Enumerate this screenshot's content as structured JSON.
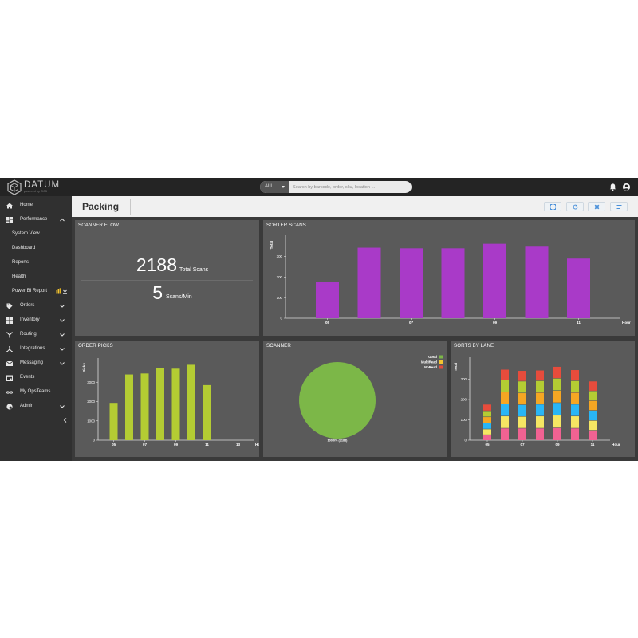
{
  "app": {
    "logo_text": "DATUM",
    "logo_sub": "powered by OC3",
    "search": {
      "scope": "ALL",
      "placeholder": "Search by barcode, order, sku, location ..."
    }
  },
  "sidebar": {
    "items": [
      {
        "label": "Home",
        "icon": "home-icon"
      },
      {
        "label": "Performance",
        "icon": "dashboard-icon",
        "expanded": true
      },
      {
        "label": "System View",
        "sub": true
      },
      {
        "label": "Dashboard",
        "sub": true
      },
      {
        "label": "Reports",
        "sub": true
      },
      {
        "label": "Health",
        "sub": true
      },
      {
        "label": "Power BI Report",
        "sub": true
      },
      {
        "label": "Orders",
        "icon": "tag-icon"
      },
      {
        "label": "Inventory",
        "icon": "grid-icon"
      },
      {
        "label": "Routing",
        "icon": "routing-icon"
      },
      {
        "label": "Integrations",
        "icon": "hub-icon"
      },
      {
        "label": "Messaging",
        "icon": "mail-icon"
      },
      {
        "label": "Events",
        "icon": "calendar-icon"
      },
      {
        "label": "My OpsTeams",
        "icon": "infinity-icon"
      },
      {
        "label": "Admin",
        "icon": "admin-icon"
      }
    ]
  },
  "page": {
    "title": "Packing"
  },
  "panels": {
    "scanner_flow": {
      "title": "SCANNER FLOW",
      "total_value": "2188",
      "total_label": "Total Scans",
      "rate_value": "5",
      "rate_label": "Scans/Min"
    },
    "sorter_scans": {
      "title": "SORTER SCANS"
    },
    "order_picks": {
      "title": "ORDER PICKS"
    },
    "scanner": {
      "title": "SCANNER"
    },
    "sorts_by_lane": {
      "title": "SORTS BY LANE"
    }
  },
  "colors": {
    "sorter_bar": "#a93ac8",
    "picks_bar": "#b4cc33",
    "pie_good": "#7cb748",
    "multiread": "#f4c430",
    "noread": "#e24c3c",
    "lane_colors": [
      "#f06292",
      "#f5e663",
      "#29b6f6",
      "#f5a623",
      "#b4cc33",
      "#e74c3c"
    ]
  },
  "chart_data": [
    {
      "id": "sorter_scans",
      "type": "bar",
      "ylabel": "Total",
      "xlabel": "Hour",
      "x": [
        5,
        6,
        7,
        8,
        9,
        10,
        11
      ],
      "xticks": [
        "05",
        "07",
        "09",
        "11"
      ],
      "xlim": [
        4,
        12
      ],
      "values": [
        178,
        343,
        340,
        340,
        362,
        348,
        290
      ],
      "yticks": [
        0,
        100,
        200,
        300
      ],
      "ylim": [
        0,
        380
      ]
    },
    {
      "id": "order_picks",
      "type": "bar",
      "ylabel": "Picks",
      "xlabel": "Hour",
      "x": [
        5,
        6,
        7,
        8,
        9,
        10,
        11
      ],
      "xticks": [
        "05",
        "07",
        "09",
        "11",
        "13"
      ],
      "xlim": [
        4,
        14
      ],
      "values": [
        1930,
        3400,
        3450,
        3720,
        3700,
        3900,
        2850
      ],
      "yticks": [
        0,
        1000,
        2000,
        3000
      ],
      "ylim": [
        0,
        4000
      ]
    },
    {
      "id": "scanner",
      "type": "pie",
      "slices": [
        {
          "name": "Good",
          "value": 2188,
          "percent": 100
        },
        {
          "name": "MultiRead",
          "value": 0,
          "percent": 0
        },
        {
          "name": "NoRead",
          "value": 0,
          "percent": 0
        }
      ],
      "slice_label": "100.0% (2188)",
      "legend": "top-right"
    },
    {
      "id": "sorts_by_lane",
      "type": "bar",
      "stacked": true,
      "ylabel": "Total",
      "xlabel": "Hour",
      "x": [
        5,
        6,
        7,
        8,
        9,
        10,
        11
      ],
      "xticks": [
        "05",
        "07",
        "09",
        "11"
      ],
      "xlim": [
        4,
        12
      ],
      "yticks": [
        0,
        100,
        200,
        300
      ],
      "ylim": [
        0,
        385
      ],
      "series": [
        {
          "values": [
            28,
            60,
            60,
            60,
            62,
            60,
            50
          ]
        },
        {
          "values": [
            28,
            60,
            58,
            60,
            62,
            60,
            48
          ]
        },
        {
          "values": [
            30,
            60,
            58,
            58,
            62,
            58,
            50
          ]
        },
        {
          "values": [
            30,
            58,
            58,
            58,
            60,
            58,
            48
          ]
        },
        {
          "values": [
            30,
            60,
            58,
            58,
            60,
            58,
            48
          ]
        },
        {
          "values": [
            32,
            52,
            52,
            52,
            58,
            54,
            48
          ]
        }
      ]
    }
  ]
}
